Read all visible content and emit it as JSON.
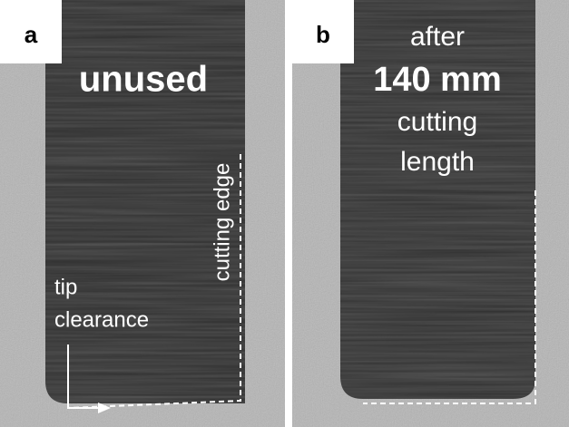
{
  "panels": [
    {
      "label": "a",
      "caption": "unused",
      "edge_label": "cutting edge",
      "tip_label": [
        "tip",
        "clearance"
      ]
    },
    {
      "label": "b",
      "caption": [
        "after",
        "140 mm",
        "cutting",
        "length"
      ]
    }
  ]
}
